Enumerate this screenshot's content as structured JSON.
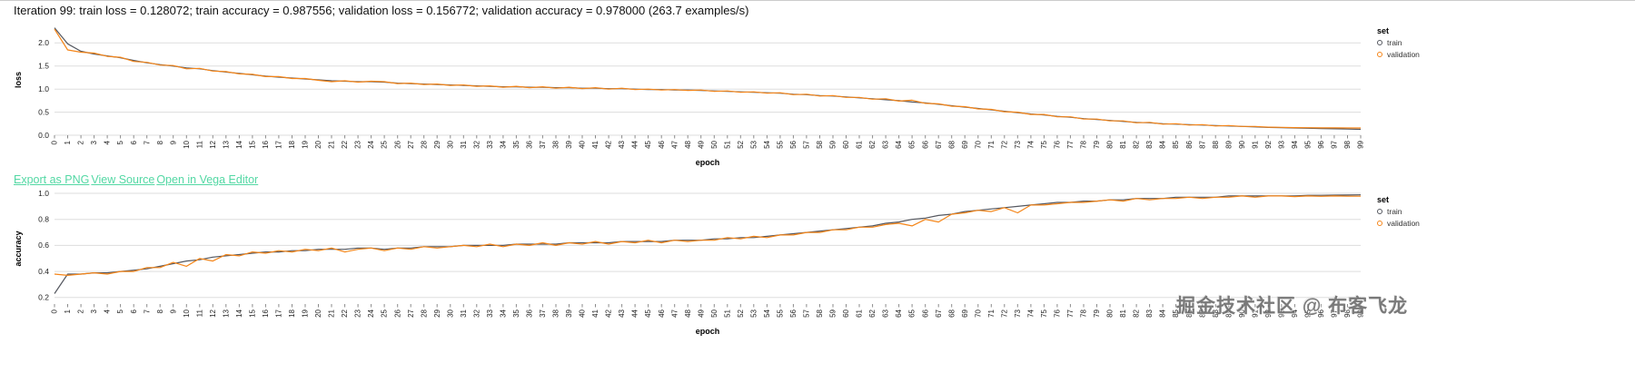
{
  "header": {
    "status_line": "Iteration 99: train loss = 0.128072; train accuracy = 0.987556; validation loss = 0.156772; validation accuracy = 0.978000 (263.7 examples/s)"
  },
  "links": {
    "export_png": "Export as PNG",
    "view_source": "View Source",
    "open_vega": "Open in Vega Editor"
  },
  "colors": {
    "train": "#54575f",
    "validation": "#f58518",
    "link": "#53d8a4",
    "grid": "#dddddd",
    "axis_text": "#222222"
  },
  "watermark": "掘金技术社区 @ 布客飞龙",
  "chart_data": [
    {
      "type": "line",
      "title": "",
      "xlabel": "epoch",
      "ylabel": "loss",
      "x": {
        "start": 0,
        "end": 99,
        "step": 1
      },
      "ylim": [
        0,
        2.4
      ],
      "y_ticks": [
        0.0,
        0.5,
        1.0,
        1.5,
        2.0
      ],
      "grid": true,
      "legend": {
        "title": "set",
        "position": "right"
      },
      "series": [
        {
          "name": "train",
          "color": "#54575f",
          "values": [
            2.33,
            1.98,
            1.82,
            1.76,
            1.72,
            1.68,
            1.62,
            1.57,
            1.53,
            1.5,
            1.46,
            1.44,
            1.4,
            1.37,
            1.34,
            1.31,
            1.28,
            1.26,
            1.24,
            1.22,
            1.2,
            1.18,
            1.17,
            1.16,
            1.16,
            1.15,
            1.13,
            1.12,
            1.11,
            1.1,
            1.09,
            1.08,
            1.07,
            1.06,
            1.05,
            1.05,
            1.04,
            1.04,
            1.03,
            1.03,
            1.02,
            1.02,
            1.01,
            1.01,
            1.0,
            0.99,
            0.99,
            0.98,
            0.98,
            0.97,
            0.96,
            0.95,
            0.94,
            0.93,
            0.92,
            0.91,
            0.89,
            0.88,
            0.86,
            0.85,
            0.83,
            0.81,
            0.79,
            0.77,
            0.75,
            0.72,
            0.7,
            0.67,
            0.64,
            0.61,
            0.58,
            0.55,
            0.52,
            0.49,
            0.46,
            0.44,
            0.41,
            0.39,
            0.36,
            0.34,
            0.32,
            0.3,
            0.28,
            0.27,
            0.25,
            0.24,
            0.23,
            0.22,
            0.21,
            0.2,
            0.19,
            0.18,
            0.17,
            0.165,
            0.158,
            0.152,
            0.145,
            0.139,
            0.133,
            0.128
          ]
        },
        {
          "name": "validation",
          "color": "#f58518",
          "values": [
            2.3,
            1.85,
            1.8,
            1.78,
            1.71,
            1.69,
            1.6,
            1.58,
            1.52,
            1.51,
            1.44,
            1.45,
            1.39,
            1.38,
            1.33,
            1.32,
            1.27,
            1.27,
            1.23,
            1.23,
            1.19,
            1.16,
            1.18,
            1.15,
            1.17,
            1.16,
            1.12,
            1.13,
            1.1,
            1.11,
            1.08,
            1.09,
            1.06,
            1.07,
            1.04,
            1.06,
            1.03,
            1.05,
            1.02,
            1.04,
            1.01,
            1.03,
            1.0,
            1.02,
            0.99,
            1.0,
            0.98,
            0.99,
            0.97,
            0.98,
            0.95,
            0.96,
            0.93,
            0.94,
            0.91,
            0.92,
            0.88,
            0.89,
            0.85,
            0.86,
            0.82,
            0.82,
            0.78,
            0.79,
            0.74,
            0.76,
            0.69,
            0.68,
            0.63,
            0.62,
            0.57,
            0.56,
            0.51,
            0.5,
            0.45,
            0.45,
            0.4,
            0.4,
            0.35,
            0.35,
            0.31,
            0.31,
            0.27,
            0.28,
            0.24,
            0.25,
            0.22,
            0.23,
            0.2,
            0.21,
            0.19,
            0.19,
            0.175,
            0.172,
            0.166,
            0.163,
            0.16,
            0.159,
            0.158,
            0.157
          ]
        }
      ]
    },
    {
      "type": "line",
      "title": "",
      "xlabel": "epoch",
      "ylabel": "accuracy",
      "x": {
        "start": 0,
        "end": 99,
        "step": 1
      },
      "ylim": [
        0.15,
        1.0
      ],
      "y_ticks": [
        0.2,
        0.4,
        0.6,
        0.8,
        1.0
      ],
      "grid": true,
      "legend": {
        "title": "set",
        "position": "right"
      },
      "series": [
        {
          "name": "train",
          "color": "#54575f",
          "values": [
            0.23,
            0.38,
            0.38,
            0.39,
            0.39,
            0.4,
            0.41,
            0.42,
            0.44,
            0.46,
            0.48,
            0.49,
            0.51,
            0.52,
            0.53,
            0.54,
            0.55,
            0.55,
            0.56,
            0.56,
            0.57,
            0.57,
            0.57,
            0.58,
            0.58,
            0.57,
            0.58,
            0.58,
            0.59,
            0.59,
            0.59,
            0.6,
            0.6,
            0.6,
            0.6,
            0.61,
            0.61,
            0.61,
            0.61,
            0.62,
            0.62,
            0.62,
            0.62,
            0.63,
            0.63,
            0.63,
            0.63,
            0.64,
            0.64,
            0.64,
            0.65,
            0.65,
            0.66,
            0.66,
            0.67,
            0.68,
            0.69,
            0.7,
            0.71,
            0.72,
            0.73,
            0.74,
            0.75,
            0.77,
            0.78,
            0.8,
            0.81,
            0.83,
            0.84,
            0.86,
            0.87,
            0.88,
            0.89,
            0.9,
            0.91,
            0.92,
            0.93,
            0.93,
            0.94,
            0.94,
            0.95,
            0.95,
            0.96,
            0.96,
            0.96,
            0.97,
            0.97,
            0.97,
            0.97,
            0.98,
            0.98,
            0.98,
            0.98,
            0.98,
            0.98,
            0.985,
            0.985,
            0.986,
            0.987,
            0.988
          ]
        },
        {
          "name": "validation",
          "color": "#f58518",
          "values": [
            0.38,
            0.37,
            0.38,
            0.39,
            0.38,
            0.4,
            0.4,
            0.43,
            0.43,
            0.47,
            0.44,
            0.5,
            0.48,
            0.53,
            0.52,
            0.55,
            0.54,
            0.56,
            0.55,
            0.57,
            0.56,
            0.58,
            0.55,
            0.57,
            0.58,
            0.56,
            0.58,
            0.57,
            0.59,
            0.58,
            0.59,
            0.6,
            0.59,
            0.61,
            0.59,
            0.61,
            0.6,
            0.62,
            0.6,
            0.62,
            0.61,
            0.63,
            0.61,
            0.63,
            0.62,
            0.64,
            0.62,
            0.64,
            0.63,
            0.64,
            0.64,
            0.66,
            0.65,
            0.67,
            0.66,
            0.68,
            0.68,
            0.7,
            0.7,
            0.72,
            0.72,
            0.74,
            0.74,
            0.76,
            0.77,
            0.75,
            0.8,
            0.78,
            0.84,
            0.85,
            0.87,
            0.86,
            0.89,
            0.85,
            0.91,
            0.91,
            0.92,
            0.93,
            0.93,
            0.94,
            0.95,
            0.94,
            0.96,
            0.95,
            0.96,
            0.96,
            0.97,
            0.96,
            0.97,
            0.97,
            0.98,
            0.97,
            0.98,
            0.98,
            0.975,
            0.98,
            0.977,
            0.98,
            0.978,
            0.978
          ]
        }
      ]
    }
  ]
}
